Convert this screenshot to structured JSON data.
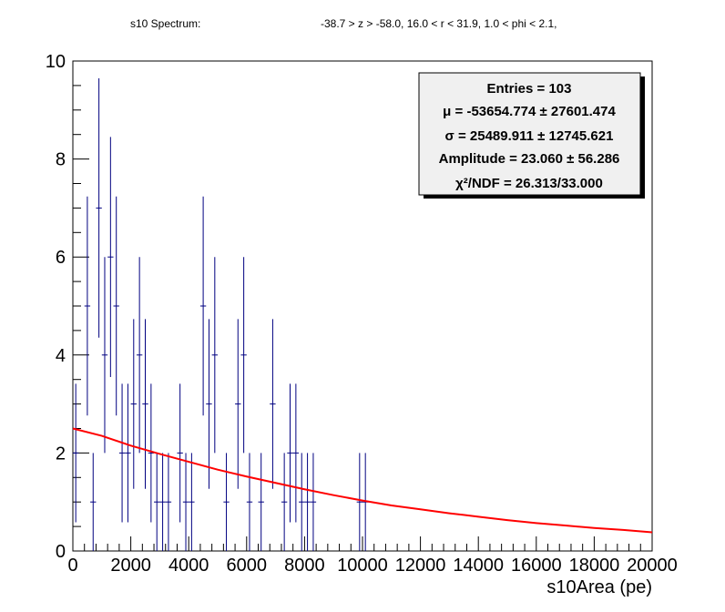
{
  "header": {
    "left": "s10 Spectrum:",
    "right": "-38.7 > z > -58.0, 16.0 < r < 31.9, 1.0 < phi < 2.1,"
  },
  "stats": {
    "lines": [
      "Entries = 103",
      "μ = -53654.774 ± 27601.474",
      "σ = 25489.911 ± 12745.621",
      "Amplitude = 23.060 ± 56.286",
      "χ²/NDF = 26.313/33.000"
    ]
  },
  "chart_data": {
    "type": "scatter",
    "title": "",
    "xlabel": "s10Area (pe)",
    "ylabel": "",
    "xlim": [
      0,
      20000
    ],
    "ylim": [
      0,
      10
    ],
    "x_ticks": [
      0,
      2000,
      4000,
      6000,
      8000,
      10000,
      12000,
      14000,
      16000,
      18000,
      20000
    ],
    "y_ticks": [
      0,
      2,
      4,
      6,
      8,
      10
    ],
    "x_tick_labels": [
      "0",
      "2000",
      "4000",
      "6000",
      "8000",
      "10000",
      "12000",
      "14000",
      "16000",
      "18000",
      "20000"
    ],
    "y_tick_labels": [
      "0",
      "2",
      "4",
      "6",
      "8",
      "10"
    ],
    "bin_width": 200,
    "series": [
      {
        "type": "errorbar",
        "color": "#000080",
        "points": [
          {
            "x": 100,
            "y": 2
          },
          {
            "x": 500,
            "y": 5
          },
          {
            "x": 700,
            "y": 1
          },
          {
            "x": 900,
            "y": 7
          },
          {
            "x": 1100,
            "y": 4
          },
          {
            "x": 1300,
            "y": 6
          },
          {
            "x": 1500,
            "y": 5
          },
          {
            "x": 1700,
            "y": 2
          },
          {
            "x": 1900,
            "y": 2
          },
          {
            "x": 2100,
            "y": 3
          },
          {
            "x": 2300,
            "y": 4
          },
          {
            "x": 2500,
            "y": 3
          },
          {
            "x": 2700,
            "y": 2
          },
          {
            "x": 2900,
            "y": 1
          },
          {
            "x": 3100,
            "y": 1
          },
          {
            "x": 3300,
            "y": 1
          },
          {
            "x": 3700,
            "y": 2
          },
          {
            "x": 3900,
            "y": 1
          },
          {
            "x": 4100,
            "y": 1
          },
          {
            "x": 4500,
            "y": 5
          },
          {
            "x": 4700,
            "y": 3
          },
          {
            "x": 4900,
            "y": 4
          },
          {
            "x": 5300,
            "y": 1
          },
          {
            "x": 5700,
            "y": 3
          },
          {
            "x": 5900,
            "y": 4
          },
          {
            "x": 6100,
            "y": 1
          },
          {
            "x": 6500,
            "y": 1
          },
          {
            "x": 6900,
            "y": 3
          },
          {
            "x": 7300,
            "y": 1
          },
          {
            "x": 7500,
            "y": 2
          },
          {
            "x": 7700,
            "y": 2
          },
          {
            "x": 7900,
            "y": 1
          },
          {
            "x": 8100,
            "y": 1
          },
          {
            "x": 8300,
            "y": 1
          },
          {
            "x": 9900,
            "y": 1
          },
          {
            "x": 10100,
            "y": 1
          }
        ]
      },
      {
        "type": "line",
        "color": "#ff0000",
        "x": [
          0,
          1000,
          2000,
          3000,
          4000,
          5000,
          6000,
          7000,
          8000,
          9000,
          10000,
          11000,
          12000,
          13000,
          14000,
          15000,
          16000,
          17000,
          18000,
          19000,
          20000
        ],
        "y": [
          2.5,
          2.35,
          2.15,
          1.98,
          1.82,
          1.66,
          1.52,
          1.39,
          1.26,
          1.14,
          1.03,
          0.93,
          0.85,
          0.77,
          0.7,
          0.63,
          0.57,
          0.52,
          0.47,
          0.43,
          0.38
        ]
      }
    ]
  }
}
